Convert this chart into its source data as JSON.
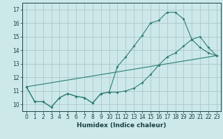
{
  "xlabel": "Humidex (Indice chaleur)",
  "bg_color": "#cce8e8",
  "grid_color": "#b0cccc",
  "line_color": "#2e7d72",
  "xlim": [
    -0.5,
    23.5
  ],
  "ylim": [
    9.5,
    17.5
  ],
  "yticks": [
    10,
    11,
    12,
    13,
    14,
    15,
    16,
    17
  ],
  "xticks": [
    0,
    1,
    2,
    3,
    4,
    5,
    6,
    7,
    8,
    9,
    10,
    11,
    12,
    13,
    14,
    15,
    16,
    17,
    18,
    19,
    20,
    21,
    22,
    23
  ],
  "line1_x": [
    0,
    1,
    2,
    3,
    4,
    5,
    6,
    7,
    8,
    9,
    10,
    11,
    12,
    13,
    14,
    15,
    16,
    17,
    18,
    19,
    20,
    21,
    22,
    23
  ],
  "line1_y": [
    11.3,
    10.2,
    10.2,
    9.8,
    10.5,
    10.8,
    10.6,
    10.5,
    10.1,
    10.8,
    10.9,
    12.8,
    13.5,
    14.3,
    15.1,
    16.0,
    16.2,
    16.8,
    16.8,
    16.3,
    14.8,
    15.0,
    14.2,
    13.6
  ],
  "line2_x": [
    0,
    1,
    2,
    3,
    4,
    5,
    6,
    7,
    8,
    9,
    10,
    11,
    12,
    13,
    14,
    15,
    16,
    17,
    18,
    19,
    20,
    21,
    22,
    23
  ],
  "line2_y": [
    11.3,
    10.2,
    10.2,
    9.8,
    10.5,
    10.8,
    10.6,
    10.5,
    10.1,
    10.8,
    10.9,
    10.9,
    11.0,
    11.2,
    11.6,
    12.2,
    12.9,
    13.5,
    13.8,
    14.3,
    14.8,
    14.2,
    13.8,
    13.6
  ],
  "line3_x": [
    0,
    23
  ],
  "line3_y": [
    11.3,
    13.6
  ]
}
